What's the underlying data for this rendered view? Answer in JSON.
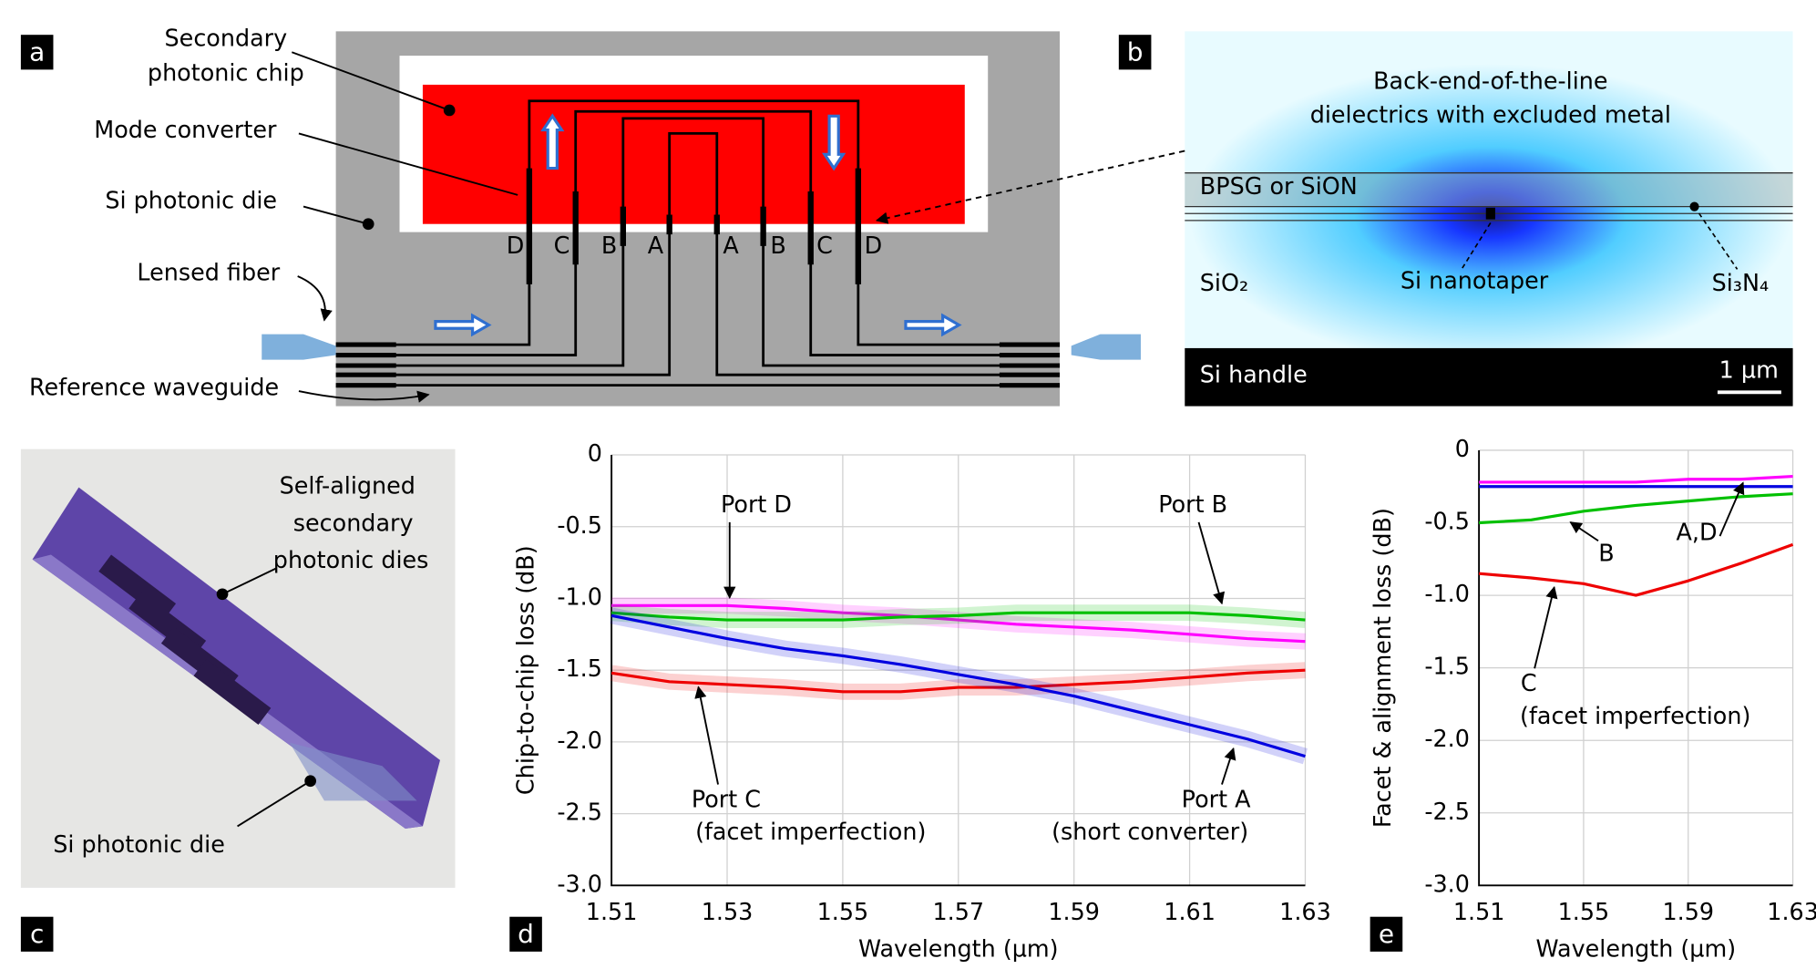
{
  "panel_labels": [
    "a",
    "b",
    "c",
    "d",
    "e"
  ],
  "panel_a": {
    "secondary_chip": [
      "Secondary",
      "photonic chip"
    ],
    "mode_converter": "Mode converter",
    "die": "Si photonic die",
    "fiber": "Lensed fiber",
    "reference": "Reference waveguide",
    "ports": [
      "D",
      "C",
      "B",
      "A",
      "A",
      "B",
      "C",
      "D"
    ]
  },
  "panel_b": {
    "top": [
      "Back-end-of-the-line",
      "dielectrics with excluded metal"
    ],
    "cladding": "BPSG or SiON",
    "oxide": "SiO₂",
    "nanotaper": "Si nanotaper",
    "nitride": "Si₃N₄",
    "handle": "Si handle",
    "scale": "1 µm"
  },
  "panel_c": {
    "secondary": [
      "Self-aligned",
      "secondary",
      "photonic dies"
    ],
    "die": "Si photonic die"
  },
  "chart_data": [
    {
      "type": "line",
      "xlabel": "Wavelength (µm)",
      "ylabel": "Chip-to-chip loss (dB)",
      "x": [
        1.51,
        1.52,
        1.53,
        1.54,
        1.55,
        1.56,
        1.57,
        1.58,
        1.59,
        1.6,
        1.61,
        1.62,
        1.63
      ],
      "series": [
        {
          "color": "#ff00ff",
          "values": [
            -1.05,
            -1.05,
            -1.05,
            -1.07,
            -1.1,
            -1.12,
            -1.15,
            -1.18,
            -1.2,
            -1.22,
            -1.25,
            -1.28,
            -1.3
          ]
        },
        {
          "color": "#00c000",
          "values": [
            -1.1,
            -1.13,
            -1.15,
            -1.15,
            -1.15,
            -1.13,
            -1.12,
            -1.1,
            -1.1,
            -1.1,
            -1.1,
            -1.12,
            -1.15
          ]
        },
        {
          "color": "#ee0000",
          "values": [
            -1.52,
            -1.58,
            -1.6,
            -1.62,
            -1.65,
            -1.65,
            -1.62,
            -1.62,
            -1.6,
            -1.58,
            -1.55,
            -1.52,
            -1.5
          ]
        },
        {
          "color": "#0000e0",
          "values": [
            -1.12,
            -1.2,
            -1.28,
            -1.35,
            -1.4,
            -1.46,
            -1.53,
            -1.6,
            -1.68,
            -1.78,
            -1.88,
            -1.98,
            -2.1
          ]
        }
      ],
      "xlim": [
        1.51,
        1.63
      ],
      "ylim": [
        -3,
        0
      ],
      "xticks": [
        1.51,
        1.53,
        1.55,
        1.57,
        1.59,
        1.61,
        1.63
      ],
      "yticks": [
        0,
        -0.5,
        {
          "value": -1,
          "label": "-1.0"
        },
        -1.5,
        {
          "value": -2,
          "label": "-2.0"
        },
        -2.5,
        {
          "value": -3,
          "label": "-3.0"
        }
      ],
      "grid": true,
      "annotations": [
        "Port D",
        "Port B",
        "Port C",
        "(facet imperfection)",
        "Port A",
        "(short converter)"
      ]
    },
    {
      "type": "line",
      "xlabel": "Wavelength (µm)",
      "ylabel": "Facet & alignment loss (dB)",
      "x": [
        1.51,
        1.53,
        1.55,
        1.57,
        1.59,
        1.61,
        1.63
      ],
      "series": [
        {
          "color": "#0000e0",
          "values": [
            -0.25,
            -0.25,
            -0.25,
            -0.25,
            -0.25,
            -0.25,
            -0.25
          ]
        },
        {
          "color": "#ff00ff",
          "values": [
            -0.22,
            -0.22,
            -0.22,
            -0.22,
            -0.2,
            -0.2,
            -0.18
          ]
        },
        {
          "color": "#00c000",
          "values": [
            -0.5,
            -0.48,
            -0.42,
            -0.38,
            -0.35,
            -0.32,
            -0.3
          ]
        },
        {
          "color": "#ee0000",
          "values": [
            -0.85,
            -0.88,
            -0.92,
            -1.0,
            -0.9,
            -0.78,
            -0.65
          ]
        }
      ],
      "xlim": [
        1.51,
        1.63
      ],
      "ylim": [
        -3,
        0
      ],
      "xticks": [
        1.51,
        1.55,
        1.59,
        1.63
      ],
      "yticks": [
        0,
        -0.5,
        {
          "value": -1,
          "label": "-1.0"
        },
        -1.5,
        {
          "value": -2,
          "label": "-2.0"
        },
        -2.5,
        {
          "value": -3,
          "label": "-3.0"
        }
      ],
      "grid": true,
      "annotations": [
        "A,D",
        "B",
        "C",
        "(facet imperfection)"
      ]
    }
  ]
}
